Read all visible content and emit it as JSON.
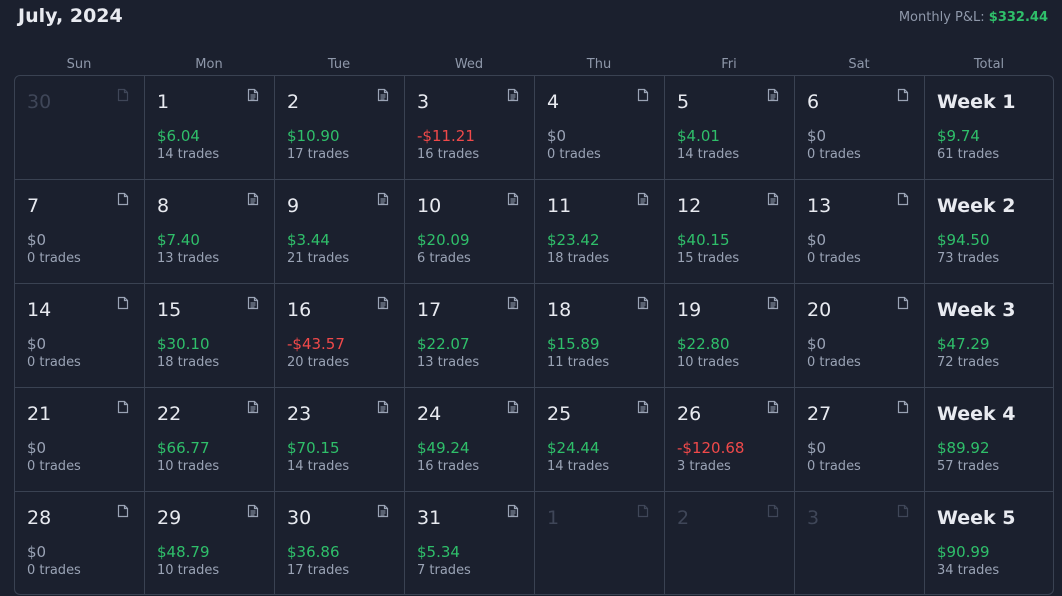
{
  "header": {
    "title": "July, 2024",
    "monthly_label": "Monthly P&L:",
    "monthly_value": "$332.44"
  },
  "weekdays": [
    "Sun",
    "Mon",
    "Tue",
    "Wed",
    "Thu",
    "Fri",
    "Sat",
    "Total"
  ],
  "weeks": [
    {
      "days": [
        {
          "day": 30
        },
        {
          "day": 1,
          "pnl": "$6.04",
          "trades": "14 trades"
        },
        {
          "day": 2,
          "pnl": "$10.90",
          "trades": "17 trades"
        },
        {
          "day": 3,
          "pnl": "-$11.21",
          "trades": "16 trades"
        },
        {
          "day": 4,
          "pnl": "$0",
          "trades": "0 trades"
        },
        {
          "day": 5,
          "pnl": "$4.01",
          "trades": "14 trades"
        },
        {
          "day": 6,
          "pnl": "$0",
          "trades": "0 trades"
        }
      ],
      "total": {
        "label": "Week 1",
        "pnl": "$9.74",
        "trades": "61 trades"
      }
    },
    {
      "days": [
        {
          "day": 7,
          "pnl": "$0",
          "trades": "0 trades"
        },
        {
          "day": 8,
          "pnl": "$7.40",
          "trades": "13 trades"
        },
        {
          "day": 9,
          "pnl": "$3.44",
          "trades": "21 trades"
        },
        {
          "day": 10,
          "pnl": "$20.09",
          "trades": "6 trades"
        },
        {
          "day": 11,
          "pnl": "$23.42",
          "trades": "18 trades"
        },
        {
          "day": 12,
          "pnl": "$40.15",
          "trades": "15 trades"
        },
        {
          "day": 13,
          "pnl": "$0",
          "trades": "0 trades"
        }
      ],
      "total": {
        "label": "Week 2",
        "pnl": "$94.50",
        "trades": "73 trades"
      }
    },
    {
      "days": [
        {
          "day": 14,
          "pnl": "$0",
          "trades": "0 trades"
        },
        {
          "day": 15,
          "pnl": "$30.10",
          "trades": "18 trades"
        },
        {
          "day": 16,
          "pnl": "-$43.57",
          "trades": "20 trades"
        },
        {
          "day": 17,
          "pnl": "$22.07",
          "trades": "13 trades"
        },
        {
          "day": 18,
          "pnl": "$15.89",
          "trades": "11 trades"
        },
        {
          "day": 19,
          "pnl": "$22.80",
          "trades": "10 trades"
        },
        {
          "day": 20,
          "pnl": "$0",
          "trades": "0 trades"
        }
      ],
      "total": {
        "label": "Week 3",
        "pnl": "$47.29",
        "trades": "72 trades"
      }
    },
    {
      "days": [
        {
          "day": 21,
          "pnl": "$0",
          "trades": "0 trades"
        },
        {
          "day": 22,
          "pnl": "$66.77",
          "trades": "10 trades"
        },
        {
          "day": 23,
          "pnl": "$70.15",
          "trades": "14 trades"
        },
        {
          "day": 24,
          "pnl": "$49.24",
          "trades": "16 trades"
        },
        {
          "day": 25,
          "pnl": "$24.44",
          "trades": "14 trades"
        },
        {
          "day": 26,
          "pnl": "-$120.68",
          "trades": "3 trades"
        },
        {
          "day": 27,
          "pnl": "$0",
          "trades": "0 trades"
        }
      ],
      "total": {
        "label": "Week 4",
        "pnl": "$89.92",
        "trades": "57 trades"
      }
    },
    {
      "days": [
        {
          "day": 28,
          "pnl": "$0",
          "trades": "0 trades"
        },
        {
          "day": 29,
          "pnl": "$48.79",
          "trades": "10 trades"
        },
        {
          "day": 30,
          "pnl": "$36.86",
          "trades": "17 trades"
        },
        {
          "day": 31,
          "pnl": "$5.34",
          "trades": "7 trades"
        },
        {
          "day": 1
        },
        {
          "day": 2
        },
        {
          "day": 3
        }
      ],
      "total": {
        "label": "Week 5",
        "pnl": "$90.99",
        "trades": "34 trades"
      }
    }
  ]
}
